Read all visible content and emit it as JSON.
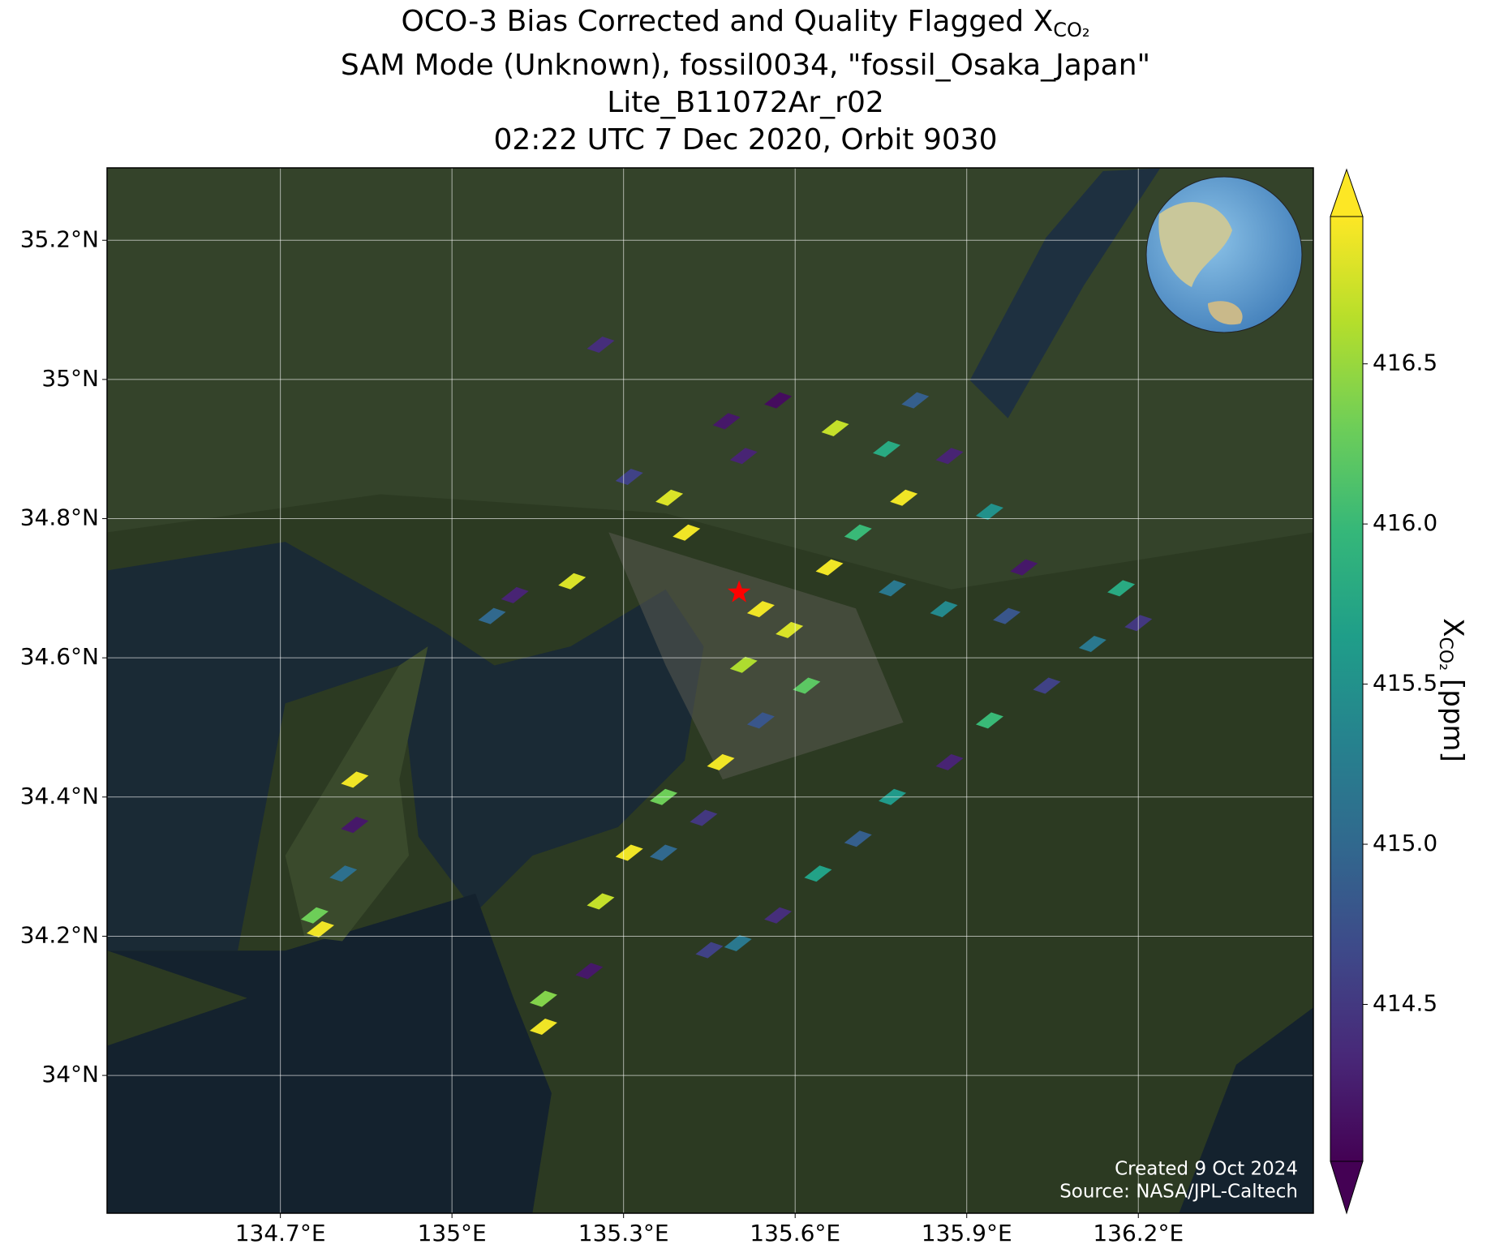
{
  "chart_data": {
    "type": "map",
    "title_main": "OCO-3 Bias Corrected and Quality Flagged X",
    "title_sub": "CO₂",
    "subtitles": [
      "SAM Mode (Unknown), fossil0034, \"fossil_Osaka_Japan\"",
      "Lite_B11072Ar_r02",
      "02:22 UTC 7 Dec 2020, Orbit 9030"
    ],
    "xlim": [
      134.397,
      136.506
    ],
    "ylim": [
      33.802,
      35.304
    ],
    "xticks": [
      {
        "value": 134.7,
        "label": "134.7°E"
      },
      {
        "value": 135.0,
        "label": "135°E"
      },
      {
        "value": 135.3,
        "label": "135.3°E"
      },
      {
        "value": 135.6,
        "label": "135.6°E"
      },
      {
        "value": 135.9,
        "label": "135.9°E"
      },
      {
        "value": 136.2,
        "label": "136.2°E"
      }
    ],
    "yticks": [
      {
        "value": 34.0,
        "label": "34°N"
      },
      {
        "value": 34.2,
        "label": "34.2°N"
      },
      {
        "value": 34.4,
        "label": "34.4°N"
      },
      {
        "value": 34.6,
        "label": "34.6°N"
      },
      {
        "value": 34.8,
        "label": "34.8°N"
      },
      {
        "value": 35.0,
        "label": "35°N"
      },
      {
        "value": 35.2,
        "label": "35.2°N"
      }
    ],
    "grid": true,
    "colormap": "viridis",
    "clim": [
      414.01,
      416.96
    ],
    "cticks": [
      414.5,
      415.0,
      415.5,
      416.0,
      416.5
    ],
    "colorbar_label": {
      "symbol": "X",
      "subscript": "CO₂",
      "unit": "[ppm]"
    },
    "site": {
      "lon": 135.502,
      "lat": 34.694,
      "color": "#ff0000"
    },
    "soundings": {
      "lon": [
        135.54,
        135.59,
        135.51,
        135.66,
        135.71,
        135.79,
        135.76,
        135.67,
        135.81,
        135.87,
        135.94,
        136.0,
        135.97,
        135.86,
        135.77,
        135.41,
        135.38,
        135.31,
        135.51,
        135.57,
        135.48,
        135.21,
        135.11,
        135.07,
        135.62,
        135.54,
        135.47,
        135.37,
        135.31,
        135.26,
        135.37,
        135.44,
        135.24,
        135.16,
        135.16,
        135.26,
        136.17,
        136.12,
        136.04,
        135.94,
        135.87,
        135.77,
        135.71,
        135.64,
        135.57,
        135.5,
        135.45,
        136.2,
        134.83,
        134.83,
        134.81,
        134.76,
        134.77
      ],
      "lat": [
        34.67,
        34.64,
        34.59,
        34.73,
        34.78,
        34.83,
        34.9,
        34.93,
        34.97,
        34.89,
        34.81,
        34.73,
        34.66,
        34.67,
        34.7,
        34.78,
        34.83,
        34.86,
        34.89,
        34.97,
        34.94,
        34.71,
        34.69,
        34.66,
        34.56,
        34.51,
        34.45,
        34.4,
        34.32,
        34.25,
        34.32,
        34.37,
        34.15,
        34.11,
        34.07,
        35.05,
        34.7,
        34.62,
        34.56,
        34.51,
        34.45,
        34.4,
        34.34,
        34.29,
        34.23,
        34.19,
        34.18,
        34.65,
        34.425,
        34.36,
        34.29,
        34.23,
        34.21
      ],
      "values": [
        416.9,
        416.8,
        416.6,
        416.9,
        416.0,
        416.9,
        415.8,
        416.7,
        414.9,
        414.3,
        415.5,
        414.2,
        414.8,
        415.4,
        415.2,
        416.9,
        416.8,
        414.6,
        414.3,
        414.1,
        414.2,
        416.8,
        414.3,
        415.0,
        416.2,
        414.8,
        416.9,
        416.3,
        416.9,
        416.7,
        415.0,
        414.5,
        414.2,
        416.4,
        416.9,
        414.4,
        415.8,
        415.2,
        414.6,
        416.0,
        414.3,
        415.6,
        414.9,
        415.7,
        414.4,
        415.2,
        414.6,
        414.5,
        416.9,
        414.2,
        415.1,
        416.3,
        416.9
      ]
    },
    "credits": [
      "Created 9 Oct 2024",
      "Source: NASA/JPL-Caltech"
    ]
  }
}
